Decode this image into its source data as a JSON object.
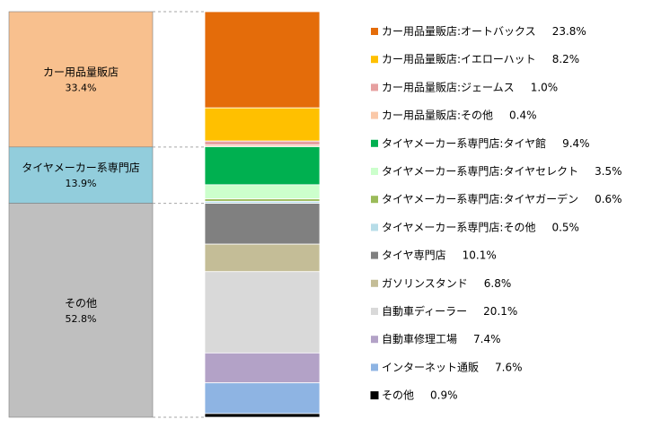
{
  "chart_data": {
    "type": "bar",
    "title": "",
    "xlabel": "",
    "ylabel": "",
    "ylim": [
      0,
      100
    ],
    "grid": false,
    "legend": "right",
    "groups": [
      {
        "name": "カー用品量販店",
        "pct_label": "33.4%",
        "value": 33.4,
        "color": "#F8C08E"
      },
      {
        "name": "タイヤメーカー系専門店",
        "pct_label": "13.9%",
        "value": 13.9,
        "color": "#92CDDC"
      },
      {
        "name": "その他",
        "pct_label": "52.8%",
        "value": 52.8,
        "color": "#BFBFBF"
      }
    ],
    "series": [
      {
        "name": "カー用品量販店:オートバックス",
        "value": 23.8,
        "label": "23.8%",
        "color": "#E46C0A",
        "group": 0
      },
      {
        "name": "カー用品量販店:イエローハット",
        "value": 8.2,
        "label": "8.2%",
        "color": "#FFC000",
        "group": 0
      },
      {
        "name": "カー用品量販店:ジェームス",
        "value": 1.0,
        "label": "1.0%",
        "color": "#E6A0A0",
        "group": 0
      },
      {
        "name": "カー用品量販店:その他",
        "value": 0.4,
        "label": "0.4%",
        "color": "#FAC8A8",
        "group": 0
      },
      {
        "name": "タイヤメーカー系専門店:タイヤ館",
        "value": 9.4,
        "label": "9.4%",
        "color": "#00B050",
        "group": 1
      },
      {
        "name": "タイヤメーカー系専門店:タイヤセレクト",
        "value": 3.5,
        "label": "3.5%",
        "color": "#CCFFCC",
        "group": 1
      },
      {
        "name": "タイヤメーカー系専門店:タイヤガーデン",
        "value": 0.6,
        "label": "0.6%",
        "color": "#9BBB59",
        "group": 1
      },
      {
        "name": "タイヤメーカー系専門店:その他",
        "value": 0.5,
        "label": "0.5%",
        "color": "#B7DDE8",
        "group": 1
      },
      {
        "name": "タイヤ専門店",
        "value": 10.1,
        "label": "10.1%",
        "color": "#808080",
        "group": 2
      },
      {
        "name": "ガソリンスタンド",
        "value": 6.8,
        "label": "6.8%",
        "color": "#C4BD97",
        "group": 2
      },
      {
        "name": "自動車ディーラー",
        "value": 20.1,
        "label": "20.1%",
        "color": "#D9D9D9",
        "group": 2
      },
      {
        "name": "自動車修理工場",
        "value": 7.4,
        "label": "7.4%",
        "color": "#B3A2C7",
        "group": 2
      },
      {
        "name": "インターネット通販",
        "value": 7.6,
        "label": "7.6%",
        "color": "#8EB4E3",
        "group": 2
      },
      {
        "name": "その他",
        "value": 0.9,
        "label": "0.9%",
        "color": "#000000",
        "group": 2
      }
    ]
  }
}
